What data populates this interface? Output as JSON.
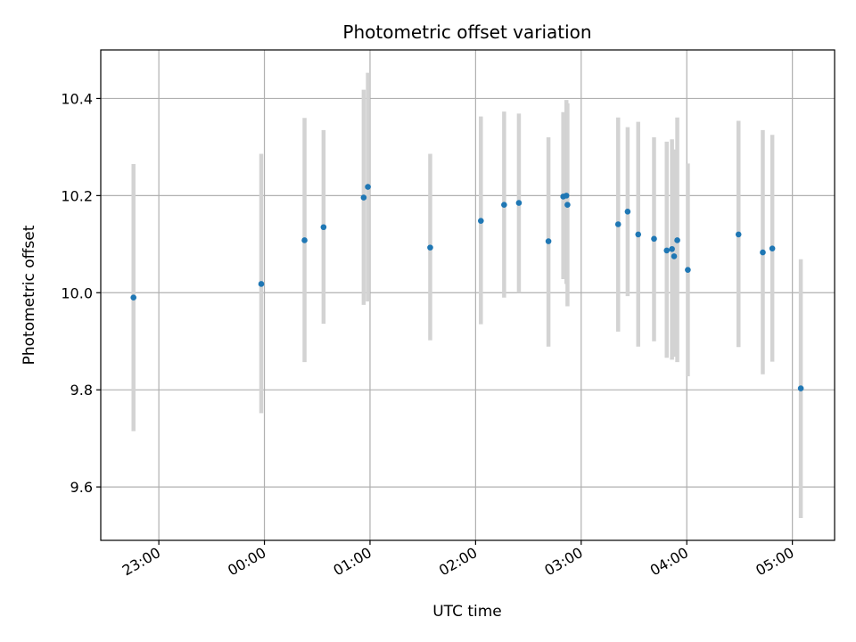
{
  "chart_data": {
    "type": "scatter",
    "title": "Photometric offset variation",
    "xlabel": "UTC time",
    "ylabel": "Photometric offset",
    "grid": true,
    "x_unit": "hours",
    "x_ticks": [
      {
        "value": -1.0,
        "label": "23:00"
      },
      {
        "value": 0.0,
        "label": "00:00"
      },
      {
        "value": 1.0,
        "label": "01:00"
      },
      {
        "value": 2.0,
        "label": "02:00"
      },
      {
        "value": 3.0,
        "label": "03:00"
      },
      {
        "value": 4.0,
        "label": "04:00"
      },
      {
        "value": 5.0,
        "label": "05:00"
      }
    ],
    "y_ticks": [
      {
        "value": 9.6,
        "label": "9.6"
      },
      {
        "value": 9.8,
        "label": "9.8"
      },
      {
        "value": 10.0,
        "label": "10.0"
      },
      {
        "value": 10.2,
        "label": "10.2"
      },
      {
        "value": 10.4,
        "label": "10.4"
      }
    ],
    "xlim": [
      -1.55,
      5.4
    ],
    "ylim": [
      9.49,
      10.5
    ],
    "point_color": "#1f77b4",
    "errorbar_color": "#d3d3d3",
    "points": [
      {
        "x": -1.24,
        "y": 9.99,
        "ylo": 9.715,
        "yhi": 10.265
      },
      {
        "x": -0.03,
        "y": 10.018,
        "ylo": 9.752,
        "yhi": 10.286
      },
      {
        "x": 0.38,
        "y": 10.108,
        "ylo": 9.857,
        "yhi": 10.36
      },
      {
        "x": 0.56,
        "y": 10.135,
        "ylo": 9.936,
        "yhi": 10.335
      },
      {
        "x": 0.94,
        "y": 10.196,
        "ylo": 9.975,
        "yhi": 10.418
      },
      {
        "x": 0.98,
        "y": 10.218,
        "ylo": 9.982,
        "yhi": 10.453
      },
      {
        "x": 1.57,
        "y": 10.093,
        "ylo": 9.902,
        "yhi": 10.286
      },
      {
        "x": 2.05,
        "y": 10.148,
        "ylo": 9.935,
        "yhi": 10.363
      },
      {
        "x": 2.27,
        "y": 10.181,
        "ylo": 9.99,
        "yhi": 10.373
      },
      {
        "x": 2.41,
        "y": 10.185,
        "ylo": 10.0,
        "yhi": 10.369
      },
      {
        "x": 2.69,
        "y": 10.106,
        "ylo": 9.889,
        "yhi": 10.32
      },
      {
        "x": 2.83,
        "y": 10.198,
        "ylo": 10.028,
        "yhi": 10.372
      },
      {
        "x": 2.86,
        "y": 10.2,
        "ylo": 10.018,
        "yhi": 10.397
      },
      {
        "x": 2.87,
        "y": 10.181,
        "ylo": 9.972,
        "yhi": 10.39
      },
      {
        "x": 3.35,
        "y": 10.141,
        "ylo": 9.92,
        "yhi": 10.361
      },
      {
        "x": 3.44,
        "y": 10.167,
        "ylo": 9.993,
        "yhi": 10.341
      },
      {
        "x": 3.54,
        "y": 10.12,
        "ylo": 9.889,
        "yhi": 10.352
      },
      {
        "x": 3.69,
        "y": 10.111,
        "ylo": 9.9,
        "yhi": 10.32
      },
      {
        "x": 3.81,
        "y": 10.087,
        "ylo": 9.866,
        "yhi": 10.311
      },
      {
        "x": 3.86,
        "y": 10.09,
        "ylo": 9.862,
        "yhi": 10.316
      },
      {
        "x": 3.88,
        "y": 10.075,
        "ylo": 9.868,
        "yhi": 10.295
      },
      {
        "x": 3.91,
        "y": 10.108,
        "ylo": 9.857,
        "yhi": 10.361
      },
      {
        "x": 4.01,
        "y": 10.047,
        "ylo": 9.828,
        "yhi": 10.266
      },
      {
        "x": 4.49,
        "y": 10.12,
        "ylo": 9.888,
        "yhi": 10.354
      },
      {
        "x": 4.72,
        "y": 10.083,
        "ylo": 9.832,
        "yhi": 10.335
      },
      {
        "x": 4.81,
        "y": 10.091,
        "ylo": 9.858,
        "yhi": 10.325
      },
      {
        "x": 5.08,
        "y": 9.803,
        "ylo": 9.536,
        "yhi": 10.069
      }
    ]
  }
}
